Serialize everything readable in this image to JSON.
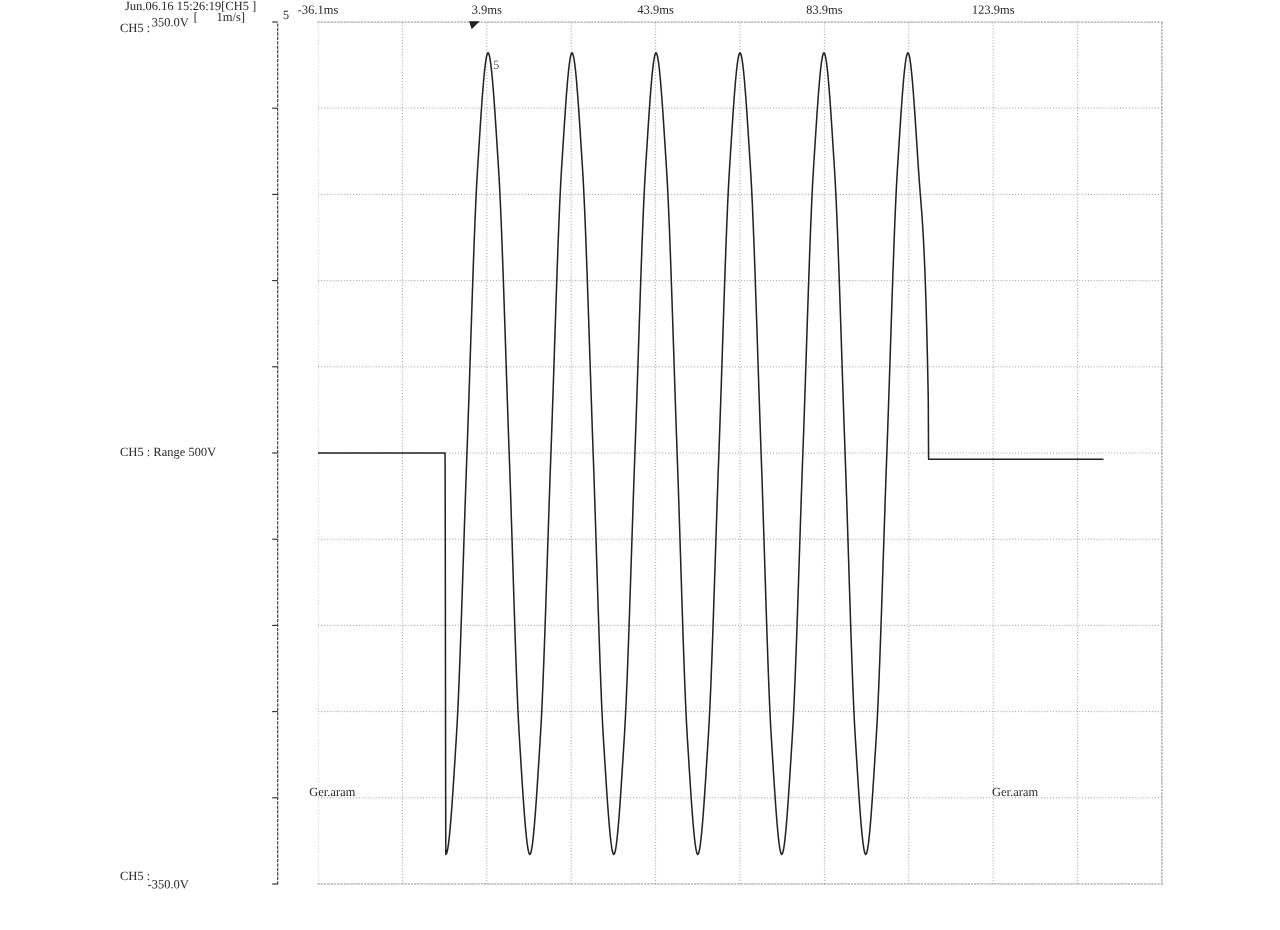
{
  "chart_data": {
    "type": "line",
    "title": "Jun.06.16 15:26:19[CH5 ]",
    "subtitle": "[      1m/s]",
    "annotations": [
      "5",
      {
        "text": "5",
        "x": 5.4,
        "y": 319
      },
      "Ger.aram",
      "Ger.aram",
      "CH5 :",
      "CH5 : Range 500V",
      "CH5 :"
    ],
    "x": [
      -36.1,
      -6.0,
      -5.8,
      -3.3,
      -0.8,
      1.7,
      4.2,
      6.7,
      9.2,
      11.6,
      14.1,
      16.6,
      19.1,
      21.6,
      24.1,
      26.6,
      29.1,
      31.5,
      34.0,
      36.5,
      39.0,
      41.5,
      44.0,
      46.5,
      49.0,
      51.4,
      53.9,
      56.4,
      58.9,
      61.4,
      63.9,
      66.4,
      68.9,
      71.3,
      73.8,
      76.3,
      78.8,
      81.3,
      83.8,
      86.3,
      88.8,
      91.2,
      93.7,
      96.2,
      98.7,
      101.2,
      103.7,
      106.2,
      108.5,
      108.6,
      149.9
    ],
    "series": [
      {
        "color": "#222222",
        "values": [
          0,
          0,
          -326,
          -230,
          0,
          230,
          325,
          230,
          0,
          -230,
          -326,
          -230,
          0,
          230,
          325,
          230,
          0,
          -230,
          -326,
          -230,
          0,
          230,
          325,
          230,
          0,
          -230,
          -326,
          -230,
          0,
          230,
          325,
          230,
          0,
          -230,
          -326,
          -230,
          0,
          230,
          325,
          230,
          0,
          -230,
          -326,
          -230,
          0,
          230,
          325,
          230,
          47,
          -5,
          -5
        ]
      }
    ],
    "xlim": [
      -36.1,
      163.9
    ],
    "xticks": [
      {
        "value": -36.1,
        "label": "-36.1ms"
      },
      {
        "value": -16.1,
        "label": null
      },
      {
        "value": 3.9,
        "label": "3.9ms"
      },
      {
        "value": 23.9,
        "label": null
      },
      {
        "value": 43.9,
        "label": "43.9ms"
      },
      {
        "value": 63.9,
        "label": null
      },
      {
        "value": 83.9,
        "label": "83.9ms"
      },
      {
        "value": 103.9,
        "label": null
      },
      {
        "value": 123.9,
        "label": "123.9ms"
      },
      {
        "value": 143.9,
        "label": null
      },
      {
        "value": 163.9,
        "label": null
      }
    ],
    "ylim": [
      -350,
      350
    ],
    "yticks": [
      {
        "value": -350,
        "label": "-350.0V"
      },
      {
        "value": -280,
        "label": null
      },
      {
        "value": -210,
        "label": null
      },
      {
        "value": -140,
        "label": null
      },
      {
        "value": -70,
        "label": null
      },
      {
        "value": 0,
        "label": null
      },
      {
        "value": 70,
        "label": null
      },
      {
        "value": 140,
        "label": null
      },
      {
        "value": 210,
        "label": null
      },
      {
        "value": 280,
        "label": null
      },
      {
        "value": 350,
        "label": "350.0V"
      }
    ],
    "grid": true,
    "legend": false,
    "marker": "none",
    "line_style": "solid"
  }
}
